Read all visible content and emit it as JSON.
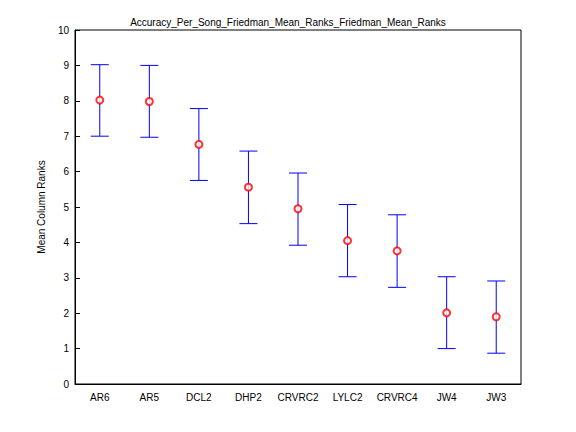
{
  "chart_data": {
    "type": "scatter",
    "title": "Accuracy_Per_Song_Friedman_Mean_Ranks_Friedman_Mean_Ranks",
    "y_label": "Mean Column Ranks",
    "categories": [
      "AR6",
      "AR5",
      "DCL2",
      "DHP2",
      "CRVRC2",
      "LYLC2",
      "CRVRC4",
      "JW4",
      "JW3"
    ],
    "values": [
      8.02,
      7.98,
      6.77,
      5.56,
      4.95,
      4.05,
      3.76,
      2.01,
      1.9
    ],
    "error_lower": [
      7.0,
      6.97,
      5.75,
      4.53,
      3.92,
      3.03,
      2.73,
      1.0,
      0.87
    ],
    "error_upper": [
      9.02,
      9.0,
      7.78,
      6.58,
      5.96,
      5.07,
      4.78,
      3.03,
      2.91
    ],
    "color": "#ff0000",
    "marker": "circle",
    "ylim": [
      0,
      10
    ],
    "yticks": [
      0,
      1,
      2,
      3,
      4,
      5,
      6,
      7,
      8,
      9,
      10
    ],
    "grid": false
  }
}
